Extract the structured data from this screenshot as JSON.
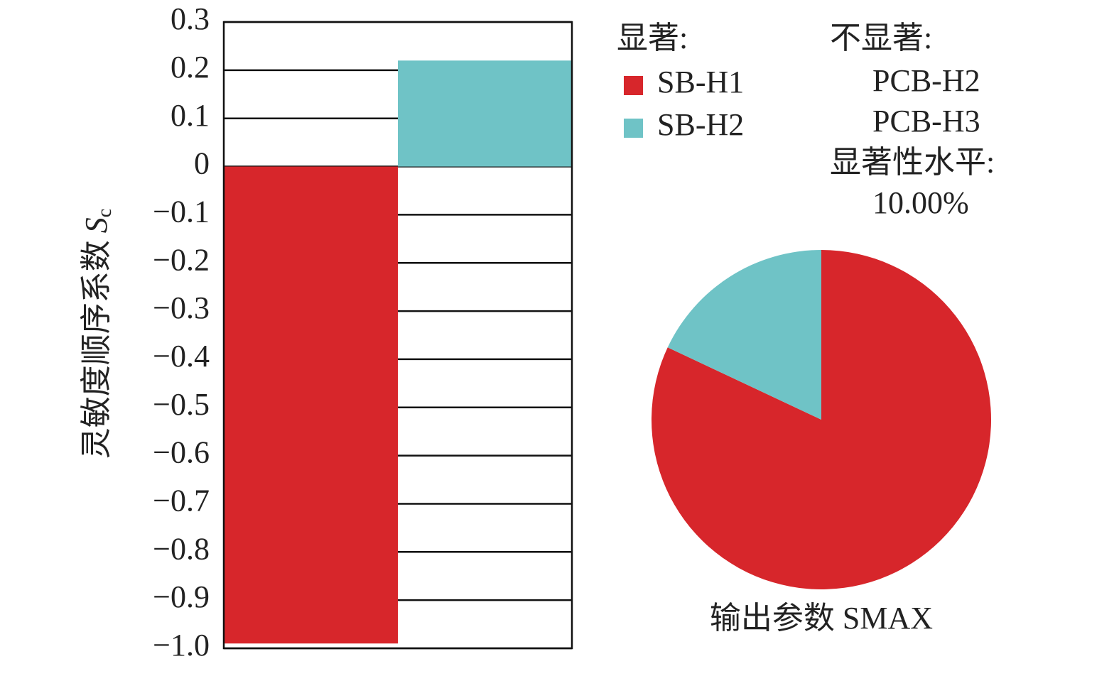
{
  "chart_data": [
    {
      "type": "bar",
      "y_label": "灵敏度顺序系数",
      "y_label_symbol": "S",
      "y_label_subscript": "c",
      "legend_title": "显著:",
      "series": [
        {
          "name": "SB-H1",
          "color": "#d7262b",
          "values": [
            -0.99
          ]
        },
        {
          "name": "SB-H2",
          "color": "#6fc3c6",
          "values": [
            0.22
          ]
        }
      ],
      "ylim": [
        -1.0,
        0.3
      ],
      "yticks": [
        {
          "value": -1.0,
          "label": "−1.0"
        },
        {
          "value": -0.9,
          "label": "−0.9"
        },
        {
          "value": -0.8,
          "label": "−0.8"
        },
        {
          "value": -0.7,
          "label": "−0.7"
        },
        {
          "value": -0.6,
          "label": "−0.6"
        },
        {
          "value": -0.5,
          "label": "−0.5"
        },
        {
          "value": -0.4,
          "label": "−0.4"
        },
        {
          "value": -0.3,
          "label": "−0.3"
        },
        {
          "value": -0.2,
          "label": "−0.2"
        },
        {
          "value": -0.1,
          "label": "−0.1"
        },
        0,
        0.1,
        0.2,
        0.3
      ],
      "grid": true,
      "insignificant_title": "不显著:",
      "insignificant": [
        "PCB-H2",
        "PCB-H3"
      ],
      "significance_title": "显著性水平:",
      "significance_level": "10.00%"
    },
    {
      "type": "pie",
      "title": "输出参数 SMAX",
      "values": [
        82,
        18
      ],
      "colors": [
        "#d7262b",
        "#6fc3c6"
      ]
    }
  ]
}
